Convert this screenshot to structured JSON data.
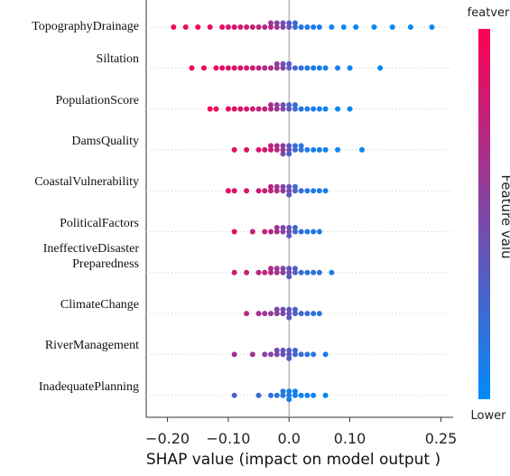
{
  "chart_data": {
    "type": "beeswarm",
    "x_label": "SHAP value (impact on model output )",
    "xlim": [
      -0.235,
      0.27
    ],
    "xticks": [
      {
        "value": -0.2,
        "label": "−0.20"
      },
      {
        "value": -0.1,
        "label": "−0.10"
      },
      {
        "value": 0,
        "label": "0.0"
      },
      {
        "value": 0.1,
        "label": "0.10"
      },
      0.25
    ],
    "zero_line": true,
    "colorbar": {
      "label": "Feature valu",
      "high_label": "featver",
      "low_label": "Lower",
      "colors": [
        "#ff0051",
        "#008bfb"
      ]
    },
    "series": [
      {
        "name": "TopographyDrainage",
        "values": [
          -0.19,
          -0.17,
          -0.15,
          -0.13,
          -0.11,
          -0.1,
          -0.09,
          -0.08,
          -0.07,
          -0.06,
          -0.05,
          -0.04,
          -0.03,
          -0.03,
          -0.02,
          -0.02,
          -0.01,
          -0.01,
          0,
          0,
          0.01,
          0.01,
          0.02,
          0.03,
          0.04,
          0.05,
          0.07,
          0.09,
          0.11,
          0.14,
          0.17,
          0.2,
          0.235
        ],
        "feature_values": [
          0.95,
          0.9,
          0.92,
          0.88,
          0.9,
          0.85,
          0.87,
          0.8,
          0.82,
          0.78,
          0.75,
          0.7,
          0.72,
          0.6,
          0.65,
          0.55,
          0.5,
          0.45,
          0.4,
          0.35,
          0.25,
          0.2,
          0.15,
          0.12,
          0.1,
          0.1,
          0.08,
          0.05,
          0.05,
          0.03,
          0.02,
          0.02,
          0.01
        ]
      },
      {
        "name": "Siltation",
        "values": [
          -0.16,
          -0.14,
          -0.12,
          -0.11,
          -0.1,
          -0.09,
          -0.08,
          -0.07,
          -0.06,
          -0.05,
          -0.04,
          -0.03,
          -0.02,
          -0.02,
          -0.01,
          -0.01,
          0,
          0,
          0.01,
          0.02,
          0.03,
          0.04,
          0.05,
          0.06,
          0.08,
          0.1,
          0.15
        ],
        "feature_values": [
          0.95,
          0.92,
          0.9,
          0.88,
          0.9,
          0.85,
          0.86,
          0.8,
          0.8,
          0.75,
          0.72,
          0.68,
          0.62,
          0.55,
          0.5,
          0.45,
          0.38,
          0.32,
          0.25,
          0.2,
          0.15,
          0.12,
          0.1,
          0.08,
          0.06,
          0.04,
          0.02
        ]
      },
      {
        "name": "PopulationScore",
        "values": [
          -0.13,
          -0.12,
          -0.1,
          -0.09,
          -0.08,
          -0.07,
          -0.06,
          -0.05,
          -0.04,
          -0.03,
          -0.03,
          -0.02,
          -0.02,
          -0.01,
          -0.01,
          0,
          0,
          0.01,
          0.01,
          0.02,
          0.03,
          0.04,
          0.05,
          0.06,
          0.08,
          0.1
        ],
        "feature_values": [
          0.95,
          0.9,
          0.9,
          0.88,
          0.85,
          0.85,
          0.8,
          0.78,
          0.75,
          0.7,
          0.65,
          0.62,
          0.55,
          0.5,
          0.45,
          0.38,
          0.3,
          0.25,
          0.2,
          0.15,
          0.12,
          0.1,
          0.08,
          0.06,
          0.04,
          0.02
        ]
      },
      {
        "name": "DamsQuality",
        "values": [
          -0.09,
          -0.07,
          -0.05,
          -0.04,
          -0.03,
          -0.03,
          -0.02,
          -0.02,
          -0.01,
          -0.01,
          -0.01,
          0,
          0,
          0,
          0.01,
          0.01,
          0.02,
          0.02,
          0.03,
          0.04,
          0.05,
          0.06,
          0.08,
          0.12
        ],
        "feature_values": [
          0.9,
          0.88,
          0.85,
          0.82,
          0.8,
          0.75,
          0.72,
          0.68,
          0.62,
          0.55,
          0.5,
          0.4,
          0.35,
          0.3,
          0.25,
          0.2,
          0.18,
          0.15,
          0.12,
          0.1,
          0.08,
          0.06,
          0.05,
          0.03
        ]
      },
      {
        "name": "CoastalVulnerability",
        "values": [
          -0.1,
          -0.09,
          -0.07,
          -0.05,
          -0.04,
          -0.03,
          -0.03,
          -0.02,
          -0.02,
          -0.01,
          -0.01,
          0,
          0,
          0,
          0.01,
          0.01,
          0.02,
          0.03,
          0.04,
          0.05,
          0.06
        ],
        "feature_values": [
          0.9,
          0.88,
          0.85,
          0.8,
          0.78,
          0.75,
          0.7,
          0.68,
          0.62,
          0.58,
          0.5,
          0.45,
          0.4,
          0.35,
          0.3,
          0.25,
          0.2,
          0.15,
          0.12,
          0.1,
          0.08
        ]
      },
      {
        "name": "PoliticalFactors",
        "values": [
          -0.09,
          -0.06,
          -0.04,
          -0.03,
          -0.02,
          -0.02,
          -0.01,
          -0.01,
          0,
          0,
          0,
          0.01,
          0.01,
          0.02,
          0.03,
          0.04,
          0.05
        ],
        "feature_values": [
          0.88,
          0.8,
          0.75,
          0.7,
          0.68,
          0.62,
          0.55,
          0.5,
          0.45,
          0.4,
          0.35,
          0.3,
          0.25,
          0.2,
          0.15,
          0.12,
          0.1
        ]
      },
      {
        "name": "IneffectiveDisaster\nPreparedness",
        "values": [
          -0.09,
          -0.07,
          -0.05,
          -0.04,
          -0.03,
          -0.03,
          -0.02,
          -0.02,
          -0.01,
          -0.01,
          0,
          0,
          0,
          0.01,
          0.01,
          0.02,
          0.03,
          0.04,
          0.05,
          0.07
        ],
        "feature_values": [
          0.8,
          0.78,
          0.75,
          0.72,
          0.7,
          0.68,
          0.65,
          0.6,
          0.55,
          0.5,
          0.45,
          0.4,
          0.35,
          0.3,
          0.28,
          0.25,
          0.2,
          0.18,
          0.15,
          0.1
        ]
      },
      {
        "name": "ClimateChange",
        "values": [
          -0.07,
          -0.05,
          -0.04,
          -0.03,
          -0.02,
          -0.02,
          -0.01,
          -0.01,
          0,
          0,
          0,
          0.01,
          0.01,
          0.02,
          0.03,
          0.04,
          0.05
        ],
        "feature_values": [
          0.7,
          0.65,
          0.6,
          0.58,
          0.55,
          0.5,
          0.48,
          0.45,
          0.42,
          0.38,
          0.35,
          0.3,
          0.28,
          0.25,
          0.2,
          0.18,
          0.15
        ]
      },
      {
        "name": "RiverManagement",
        "values": [
          -0.09,
          -0.06,
          -0.04,
          -0.03,
          -0.02,
          -0.02,
          -0.01,
          -0.01,
          0,
          0,
          0,
          0.01,
          0.01,
          0.02,
          0.03,
          0.04,
          0.06
        ],
        "feature_values": [
          0.65,
          0.6,
          0.55,
          0.52,
          0.5,
          0.45,
          0.42,
          0.4,
          0.38,
          0.35,
          0.3,
          0.28,
          0.25,
          0.22,
          0.2,
          0.15,
          0.12
        ]
      },
      {
        "name": "InadequatePlanning",
        "values": [
          -0.09,
          -0.05,
          -0.03,
          -0.02,
          -0.01,
          -0.01,
          0,
          0,
          0,
          0.01,
          0.01,
          0.02,
          0.03,
          0.04,
          0.06
        ],
        "feature_values": [
          0.3,
          0.25,
          0.2,
          0.18,
          0.15,
          0.12,
          0.12,
          0.1,
          0.08,
          0.08,
          0.06,
          0.06,
          0.05,
          0.04,
          0.03
        ]
      }
    ]
  }
}
